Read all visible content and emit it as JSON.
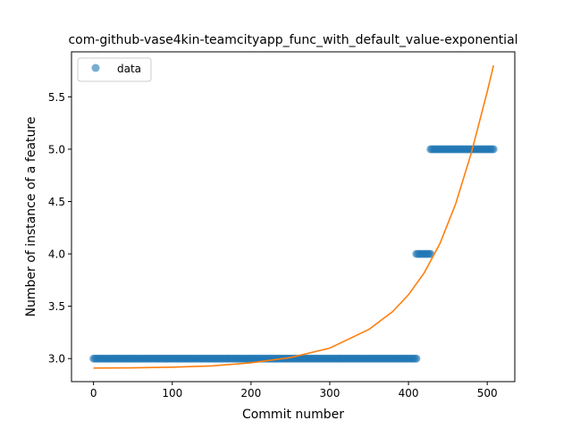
{
  "chart_data": {
    "type": "scatter",
    "title": "com-github-vase4kin-teamcityapp_func_with_default_value-exponential",
    "xlabel": "Commit number",
    "ylabel": "Number of instance of a feature",
    "xlim": [
      -28,
      535
    ],
    "ylim": [
      2.78,
      5.93
    ],
    "xticks": [
      0,
      100,
      200,
      300,
      400,
      500
    ],
    "xtick_labels": [
      "0",
      "100",
      "200",
      "300",
      "400",
      "500"
    ],
    "yticks": [
      3.0,
      3.5,
      4.0,
      4.5,
      5.0,
      5.5
    ],
    "ytick_labels": [
      "3.0",
      "3.5",
      "4.0",
      "4.5",
      "5.0",
      "5.5"
    ],
    "grid": false,
    "legend": {
      "position": "top-left",
      "entries": [
        "data"
      ]
    },
    "series": [
      {
        "name": "data",
        "kind": "scatter",
        "color": "#1f77b4",
        "segments": [
          {
            "x_start": 0,
            "x_end": 410,
            "step": 2,
            "y": 3.0
          },
          {
            "x_start": 410,
            "x_end": 428,
            "step": 2,
            "y": 4.0
          },
          {
            "x_start": 428,
            "x_end": 508,
            "step": 2,
            "y": 5.0
          }
        ]
      },
      {
        "kind": "line",
        "color": "#ff7f0e",
        "x": [
          0,
          50,
          100,
          150,
          200,
          250,
          300,
          350,
          380,
          400,
          420,
          440,
          460,
          480,
          500,
          508
        ],
        "y": [
          2.91,
          2.912,
          2.918,
          2.93,
          2.96,
          3.01,
          3.1,
          3.28,
          3.45,
          3.61,
          3.82,
          4.1,
          4.48,
          4.97,
          5.55,
          5.8
        ]
      }
    ]
  }
}
